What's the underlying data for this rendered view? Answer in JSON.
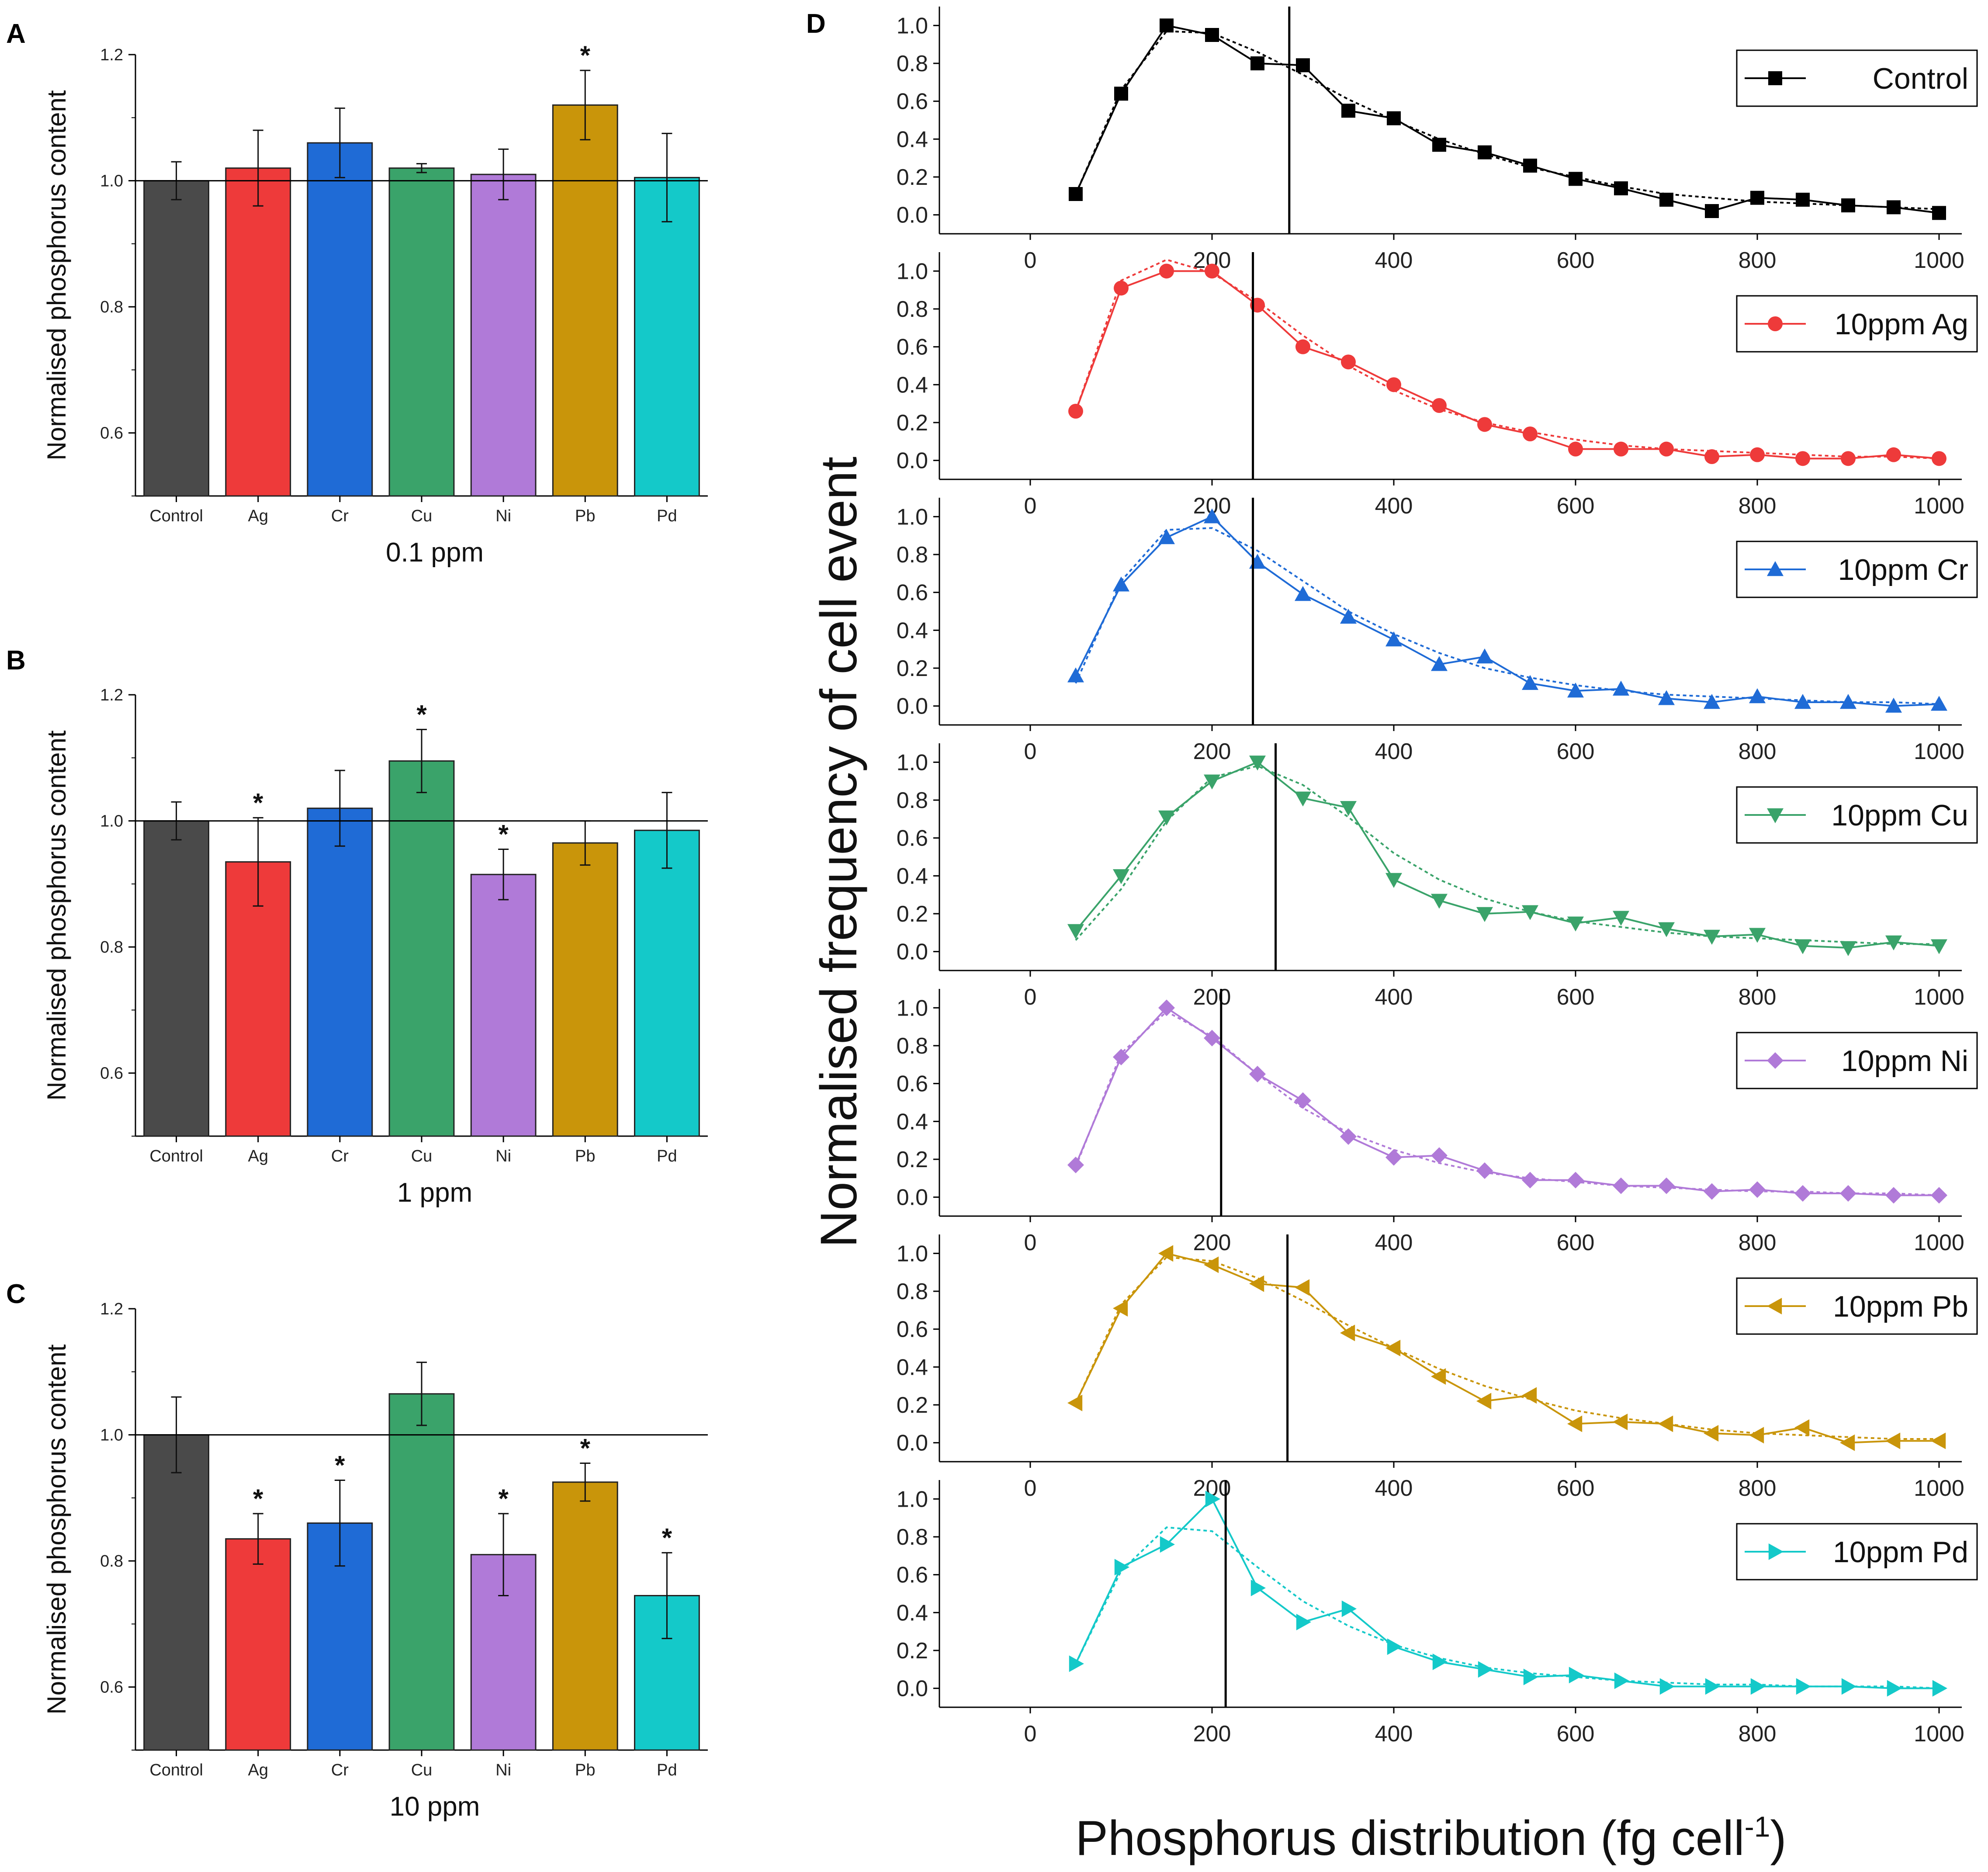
{
  "chart_data": [
    {
      "panel": "A",
      "type": "bar",
      "title": "",
      "xlabel": "0.1 ppm",
      "ylabel": "Normalised phosphorus content",
      "ylim": [
        0.5,
        1.2
      ],
      "yticks": [
        "0.6",
        "0.8",
        "1.0",
        "1.2"
      ],
      "reference_line": 1.0,
      "categories": [
        "Control",
        "Ag",
        "Cr",
        "Cu",
        "Ni",
        "Pb",
        "Pd"
      ],
      "values": [
        1.0,
        1.02,
        1.06,
        1.02,
        1.01,
        1.12,
        1.005
      ],
      "errors": [
        0.03,
        0.06,
        0.055,
        0.007,
        0.04,
        0.055,
        0.07
      ],
      "significance": [
        "",
        "",
        "",
        "",
        "",
        "*",
        ""
      ],
      "colors": [
        "#4a4a4a",
        "#ee3a3a",
        "#1f6bd6",
        "#3aa36a",
        "#b07ad8",
        "#c9950a",
        "#14c9c9"
      ]
    },
    {
      "panel": "B",
      "type": "bar",
      "title": "",
      "xlabel": "1 ppm",
      "ylabel": "Normalised phosphorus content",
      "ylim": [
        0.5,
        1.2
      ],
      "yticks": [
        "0.6",
        "0.8",
        "1.0",
        "1.2"
      ],
      "reference_line": 1.0,
      "categories": [
        "Control",
        "Ag",
        "Cr",
        "Cu",
        "Ni",
        "Pb",
        "Pd"
      ],
      "values": [
        1.0,
        0.935,
        1.02,
        1.095,
        0.915,
        0.965,
        0.985
      ],
      "errors": [
        0.03,
        0.07,
        0.06,
        0.05,
        0.04,
        0.035,
        0.06
      ],
      "significance": [
        "",
        "*",
        "",
        "*",
        "*",
        "",
        ""
      ],
      "colors": [
        "#4a4a4a",
        "#ee3a3a",
        "#1f6bd6",
        "#3aa36a",
        "#b07ad8",
        "#c9950a",
        "#14c9c9"
      ]
    },
    {
      "panel": "C",
      "type": "bar",
      "title": "",
      "xlabel": "10 ppm",
      "ylabel": "Normalised phosphorus content",
      "ylim": [
        0.5,
        1.2
      ],
      "yticks": [
        "0.6",
        "0.8",
        "1.0",
        "1.2"
      ],
      "reference_line": 1.0,
      "categories": [
        "Control",
        "Ag",
        "Cr",
        "Cu",
        "Ni",
        "Pb",
        "Pd"
      ],
      "values": [
        1.0,
        0.835,
        0.86,
        1.065,
        0.81,
        0.925,
        0.745
      ],
      "errors": [
        0.06,
        0.04,
        0.068,
        0.05,
        0.065,
        0.03,
        0.068
      ],
      "significance": [
        "",
        "*",
        "*",
        "",
        "*",
        "*",
        "*"
      ],
      "colors": [
        "#4a4a4a",
        "#ee3a3a",
        "#1f6bd6",
        "#3aa36a",
        "#b07ad8",
        "#c9950a",
        "#14c9c9"
      ]
    },
    {
      "panel": "D",
      "type": "line",
      "title": "",
      "xlabel_prefix": "Phosphorus distribution (fg cell",
      "xlabel_sup": "-1",
      "xlabel_suffix": ")",
      "ylabel": "Normalised frequency of cell event",
      "xlim": [
        -100,
        1025
      ],
      "ylim": [
        -0.1,
        1.1
      ],
      "xticks": [
        "0",
        "200",
        "400",
        "600",
        "800",
        "1000"
      ],
      "yticks": [
        "0.0",
        "0.2",
        "0.4",
        "0.6",
        "0.8",
        "1.0"
      ],
      "x": [
        50,
        100,
        150,
        200,
        250,
        300,
        350,
        400,
        450,
        500,
        550,
        600,
        650,
        700,
        750,
        800,
        850,
        900,
        950,
        1000
      ],
      "series": [
        {
          "name": "Control",
          "color": "#000000",
          "marker": "square",
          "values": [
            0.11,
            0.64,
            1.0,
            0.95,
            0.8,
            0.79,
            0.55,
            0.51,
            0.37,
            0.33,
            0.26,
            0.19,
            0.14,
            0.08,
            0.02,
            0.09,
            0.08,
            0.05,
            0.04,
            0.01
          ],
          "fit": [
            0.11,
            0.66,
            0.97,
            0.96,
            0.86,
            0.74,
            0.61,
            0.5,
            0.4,
            0.32,
            0.25,
            0.2,
            0.15,
            0.11,
            0.09,
            0.07,
            0.06,
            0.05,
            0.04,
            0.03
          ],
          "vline": 285
        },
        {
          "name": "10ppm Ag",
          "color": "#ee3a3a",
          "marker": "circle",
          "values": [
            0.26,
            0.91,
            1.0,
            1.0,
            0.82,
            0.6,
            0.52,
            0.4,
            0.29,
            0.19,
            0.14,
            0.06,
            0.06,
            0.06,
            0.02,
            0.03,
            0.01,
            0.01,
            0.03,
            0.01
          ],
          "fit": [
            0.26,
            0.95,
            1.06,
            0.99,
            0.84,
            0.66,
            0.5,
            0.37,
            0.27,
            0.2,
            0.15,
            0.11,
            0.08,
            0.06,
            0.05,
            0.04,
            0.03,
            0.02,
            0.02,
            0.01
          ],
          "vline": 245
        },
        {
          "name": "10ppm Cr",
          "color": "#1f6bd6",
          "marker": "triangle-up",
          "values": [
            0.16,
            0.64,
            0.89,
            1.0,
            0.76,
            0.59,
            0.47,
            0.35,
            0.22,
            0.26,
            0.12,
            0.08,
            0.09,
            0.04,
            0.02,
            0.05,
            0.02,
            0.02,
            0.0,
            0.01
          ],
          "fit": [
            0.12,
            0.66,
            0.93,
            0.94,
            0.82,
            0.66,
            0.5,
            0.38,
            0.28,
            0.2,
            0.15,
            0.11,
            0.08,
            0.06,
            0.05,
            0.04,
            0.03,
            0.02,
            0.02,
            0.01
          ],
          "vline": 245
        },
        {
          "name": "10ppm Cu",
          "color": "#3aa36a",
          "marker": "triangle-down",
          "values": [
            0.11,
            0.4,
            0.71,
            0.9,
            1.0,
            0.81,
            0.76,
            0.38,
            0.27,
            0.2,
            0.21,
            0.15,
            0.18,
            0.12,
            0.08,
            0.09,
            0.03,
            0.02,
            0.05,
            0.03
          ],
          "fit": [
            0.06,
            0.33,
            0.69,
            0.92,
            0.98,
            0.88,
            0.71,
            0.52,
            0.38,
            0.28,
            0.21,
            0.16,
            0.13,
            0.1,
            0.08,
            0.07,
            0.06,
            0.05,
            0.04,
            0.04
          ],
          "vline": 270
        },
        {
          "name": "10ppm Ni",
          "color": "#b07ad8",
          "marker": "diamond",
          "values": [
            0.17,
            0.74,
            1.0,
            0.84,
            0.65,
            0.51,
            0.32,
            0.21,
            0.22,
            0.14,
            0.09,
            0.09,
            0.06,
            0.06,
            0.03,
            0.04,
            0.02,
            0.02,
            0.01,
            0.01
          ],
          "fit": [
            0.16,
            0.76,
            0.98,
            0.85,
            0.65,
            0.47,
            0.34,
            0.25,
            0.18,
            0.13,
            0.1,
            0.08,
            0.06,
            0.05,
            0.04,
            0.03,
            0.03,
            0.02,
            0.02,
            0.01
          ],
          "vline": 210
        },
        {
          "name": "10ppm Pb",
          "color": "#c9950a",
          "marker": "triangle-left",
          "values": [
            0.21,
            0.71,
            1.0,
            0.94,
            0.84,
            0.82,
            0.58,
            0.5,
            0.35,
            0.22,
            0.25,
            0.1,
            0.11,
            0.1,
            0.05,
            0.04,
            0.08,
            0.0,
            0.01,
            0.01
          ],
          "fit": [
            0.21,
            0.73,
            0.98,
            0.96,
            0.87,
            0.75,
            0.62,
            0.5,
            0.39,
            0.3,
            0.23,
            0.17,
            0.13,
            0.1,
            0.07,
            0.05,
            0.04,
            0.03,
            0.02,
            0.02
          ],
          "vline": 283
        },
        {
          "name": "10ppm Pd",
          "color": "#14c9c9",
          "marker": "triangle-right",
          "values": [
            0.13,
            0.64,
            0.76,
            1.0,
            0.53,
            0.35,
            0.42,
            0.22,
            0.14,
            0.1,
            0.06,
            0.07,
            0.04,
            0.01,
            0.01,
            0.01,
            0.01,
            0.01,
            0.0,
            0.0
          ],
          "fit": [
            0.13,
            0.62,
            0.85,
            0.83,
            0.64,
            0.46,
            0.33,
            0.23,
            0.16,
            0.11,
            0.08,
            0.06,
            0.04,
            0.03,
            0.02,
            0.02,
            0.01,
            0.01,
            0.01,
            0.0
          ],
          "vline": 215
        }
      ]
    }
  ]
}
